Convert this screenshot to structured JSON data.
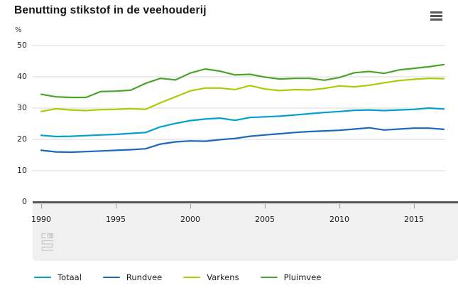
{
  "header": {
    "title": "Benutting stikstof in de veehouderij",
    "menu_icon": "hamburger-menu-icon"
  },
  "chart_data": {
    "type": "line",
    "title": "Benutting stikstof in de veehouderij",
    "unit_label": "%",
    "x": [
      1990,
      1991,
      1992,
      1993,
      1994,
      1995,
      1996,
      1997,
      1998,
      1999,
      2000,
      2001,
      2002,
      2003,
      2004,
      2005,
      2006,
      2007,
      2008,
      2009,
      2010,
      2011,
      2012,
      2013,
      2014,
      2015,
      2016,
      2017
    ],
    "xticks": [
      1990,
      1995,
      2000,
      2005,
      2010,
      2015
    ],
    "yticks": [
      0,
      10,
      20,
      30,
      40,
      50
    ],
    "ylim": [
      0,
      50
    ],
    "xlim": [
      1990,
      2017
    ],
    "grid": true,
    "legend_position": "bottom",
    "series": [
      {
        "name": "Totaal",
        "color": "#00a1cd",
        "values": [
          21.3,
          20.9,
          21.0,
          21.2,
          21.4,
          21.6,
          21.9,
          22.2,
          24.0,
          25.1,
          26.0,
          26.5,
          26.8,
          26.1,
          27.0,
          27.2,
          27.4,
          27.8,
          28.2,
          28.6,
          28.9,
          29.3,
          29.4,
          29.2,
          29.4,
          29.6,
          30.0,
          29.7
        ]
      },
      {
        "name": "Rundvee",
        "color": "#1f67b8",
        "values": [
          16.5,
          16.0,
          15.9,
          16.1,
          16.3,
          16.5,
          16.7,
          17.0,
          18.5,
          19.2,
          19.5,
          19.4,
          19.9,
          20.3,
          21.0,
          21.4,
          21.8,
          22.2,
          22.5,
          22.7,
          22.9,
          23.3,
          23.7,
          23.0,
          23.3,
          23.6,
          23.6,
          23.2
        ]
      },
      {
        "name": "Varkens",
        "color": "#afcb05",
        "values": [
          28.9,
          29.8,
          29.4,
          29.2,
          29.5,
          29.6,
          29.8,
          29.6,
          31.7,
          33.6,
          35.5,
          36.4,
          36.4,
          35.9,
          37.2,
          36.1,
          35.6,
          35.9,
          35.8,
          36.3,
          37.1,
          36.8,
          37.3,
          38.1,
          38.8,
          39.2,
          39.5,
          39.4
        ]
      },
      {
        "name": "Pluimvee",
        "color": "#4ca32b",
        "values": [
          34.4,
          33.6,
          33.4,
          33.4,
          35.3,
          35.4,
          35.7,
          37.9,
          39.5,
          39.0,
          41.2,
          42.5,
          41.8,
          40.6,
          40.8,
          39.9,
          39.3,
          39.5,
          39.5,
          38.9,
          39.8,
          41.3,
          41.7,
          41.1,
          42.2,
          42.7,
          43.2,
          43.9
        ]
      }
    ]
  },
  "footer": {
    "logo": "cbs-logo"
  }
}
